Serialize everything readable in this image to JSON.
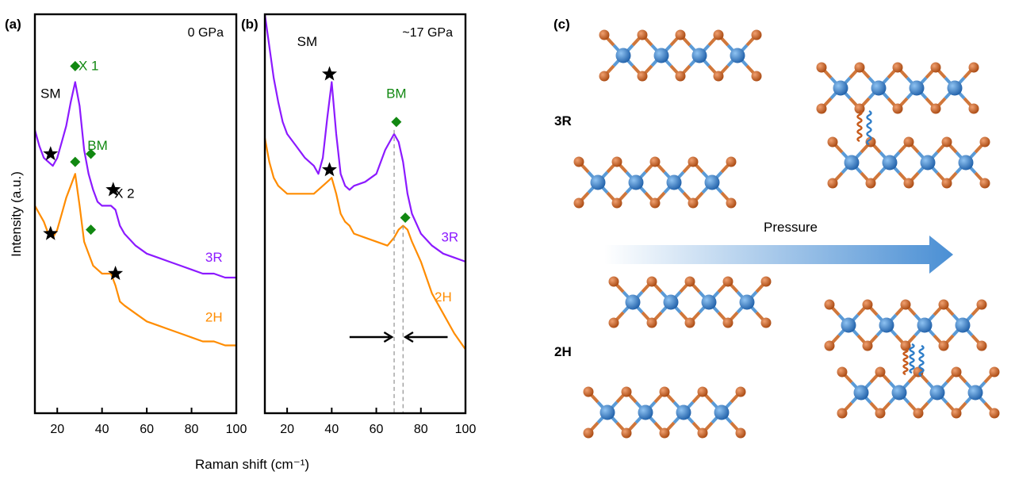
{
  "panel_labels": {
    "a": "(a)",
    "b": "(b)",
    "c": "(c)"
  },
  "colors": {
    "r3": "#8c1aff",
    "h2": "#ff8c00",
    "annot_green": "#118811",
    "metal": "#2e7dc8",
    "chalcogen": "#c75a1a",
    "arrow": "#4a8fd4",
    "axis": "#000000"
  },
  "chart_data": [
    {
      "type": "line",
      "title": "0 GPa",
      "xlabel": "Raman shift (cm⁻¹)",
      "ylabel": "Intensity (a.u.)",
      "xlim": [
        10,
        100
      ],
      "xticks": [
        "20",
        "40",
        "60",
        "80",
        "100"
      ],
      "yticks": [],
      "series": [
        {
          "name": "3R",
          "color": "#8c1aff",
          "x": [
            10,
            12,
            14,
            16,
            18,
            20,
            22,
            24,
            26,
            28,
            30,
            32,
            34,
            36,
            38,
            40,
            42,
            44,
            46,
            48,
            50,
            55,
            60,
            65,
            70,
            75,
            80,
            85,
            90,
            95,
            100
          ],
          "y": [
            0.71,
            0.67,
            0.64,
            0.63,
            0.62,
            0.64,
            0.68,
            0.72,
            0.78,
            0.83,
            0.77,
            0.66,
            0.6,
            0.56,
            0.53,
            0.52,
            0.52,
            0.52,
            0.51,
            0.47,
            0.45,
            0.42,
            0.4,
            0.39,
            0.38,
            0.37,
            0.36,
            0.35,
            0.35,
            0.34,
            0.34
          ]
        },
        {
          "name": "2H",
          "color": "#ff8c00",
          "x": [
            10,
            12,
            14,
            16,
            18,
            20,
            22,
            24,
            26,
            28,
            30,
            32,
            34,
            36,
            38,
            40,
            42,
            44,
            46,
            48,
            50,
            55,
            60,
            65,
            70,
            75,
            80,
            85,
            90,
            95,
            100
          ],
          "y": [
            0.52,
            0.5,
            0.48,
            0.45,
            0.44,
            0.46,
            0.5,
            0.54,
            0.57,
            0.6,
            0.52,
            0.43,
            0.4,
            0.37,
            0.36,
            0.35,
            0.35,
            0.35,
            0.32,
            0.28,
            0.27,
            0.25,
            0.23,
            0.22,
            0.21,
            0.2,
            0.19,
            0.18,
            0.18,
            0.17,
            0.17
          ]
        }
      ],
      "annotations": [
        {
          "text": "SM",
          "x": 17,
          "y": 0.79
        },
        {
          "text": "X 1",
          "color": "#118811",
          "x": 34,
          "y": 0.86
        },
        {
          "text": "BM",
          "color": "#118811",
          "x": 38,
          "y": 0.66
        },
        {
          "text": "X 2",
          "x": 50,
          "y": 0.54
        },
        {
          "text": "3R",
          "color": "#8c1aff",
          "x": 90,
          "y": 0.38
        },
        {
          "text": "2H",
          "color": "#ff8c00",
          "x": 90,
          "y": 0.23
        }
      ],
      "markers": [
        {
          "shape": "star",
          "x": 17,
          "y": 0.65
        },
        {
          "shape": "star",
          "x": 45,
          "y": 0.56
        },
        {
          "shape": "star",
          "x": 17,
          "y": 0.45
        },
        {
          "shape": "star",
          "x": 46,
          "y": 0.35
        },
        {
          "shape": "diamond",
          "x": 28,
          "y": 0.87
        },
        {
          "shape": "diamond",
          "x": 35,
          "y": 0.65
        },
        {
          "shape": "diamond",
          "x": 28,
          "y": 0.63
        },
        {
          "shape": "diamond",
          "x": 35,
          "y": 0.46
        }
      ]
    },
    {
      "type": "line",
      "title": "~17 GPa",
      "xlabel": "Raman shift (cm⁻¹)",
      "ylabel": "",
      "xlim": [
        10,
        100
      ],
      "xticks": [
        "20",
        "40",
        "60",
        "80",
        "100"
      ],
      "yticks": [],
      "series": [
        {
          "name": "3R",
          "color": "#8c1aff",
          "x": [
            10,
            12,
            14,
            16,
            18,
            20,
            24,
            28,
            32,
            34,
            36,
            38,
            40,
            42,
            44,
            46,
            48,
            50,
            55,
            60,
            64,
            68,
            70,
            72,
            74,
            76,
            80,
            85,
            90,
            95,
            100
          ],
          "y": [
            1.0,
            0.92,
            0.84,
            0.78,
            0.73,
            0.7,
            0.67,
            0.64,
            0.62,
            0.6,
            0.64,
            0.74,
            0.83,
            0.7,
            0.6,
            0.57,
            0.56,
            0.57,
            0.58,
            0.6,
            0.66,
            0.7,
            0.68,
            0.63,
            0.55,
            0.5,
            0.45,
            0.42,
            0.4,
            0.39,
            0.38
          ]
        },
        {
          "name": "2H",
          "color": "#ff8c00",
          "x": [
            10,
            12,
            14,
            16,
            18,
            20,
            24,
            28,
            32,
            36,
            38,
            40,
            42,
            44,
            46,
            48,
            50,
            55,
            60,
            65,
            68,
            70,
            72,
            74,
            76,
            80,
            85,
            90,
            95,
            100
          ],
          "y": [
            0.69,
            0.63,
            0.59,
            0.57,
            0.56,
            0.55,
            0.55,
            0.55,
            0.55,
            0.57,
            0.58,
            0.59,
            0.55,
            0.5,
            0.48,
            0.47,
            0.45,
            0.44,
            0.43,
            0.42,
            0.44,
            0.46,
            0.47,
            0.46,
            0.43,
            0.38,
            0.3,
            0.25,
            0.2,
            0.16
          ]
        }
      ],
      "annotations": [
        {
          "text": "SM",
          "x": 29,
          "y": 0.92
        },
        {
          "text": "BM",
          "color": "#118811",
          "x": 69,
          "y": 0.79
        },
        {
          "text": "3R",
          "color": "#8c1aff",
          "x": 93,
          "y": 0.43
        },
        {
          "text": "2H",
          "color": "#ff8c00",
          "x": 90,
          "y": 0.28
        }
      ],
      "markers": [
        {
          "shape": "star",
          "x": 39,
          "y": 0.85
        },
        {
          "shape": "star",
          "x": 39,
          "y": 0.61
        },
        {
          "shape": "diamond",
          "x": 69,
          "y": 0.73
        },
        {
          "shape": "diamond",
          "x": 73,
          "y": 0.49
        }
      ]
    }
  ],
  "panel_c": {
    "rows": [
      "3R",
      "2H"
    ],
    "arrow_label": "Pressure"
  }
}
